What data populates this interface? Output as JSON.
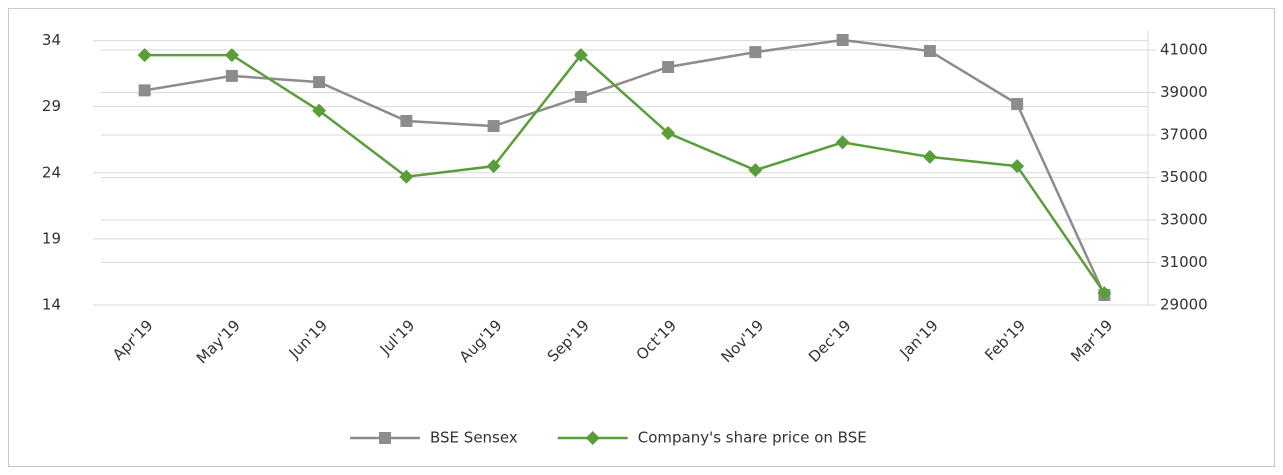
{
  "chart_data": {
    "type": "line",
    "categories": [
      "Apr'19",
      "May'19",
      "Jun'19",
      "Jul'19",
      "Aug'19",
      "Sep'19",
      "Oct'19",
      "Nov'19",
      "Dec'19",
      "Jan'19",
      "Feb'19",
      "Mar'19"
    ],
    "series": [
      {
        "name": "BSE Sensex",
        "color": "#8c8c8c",
        "marker": "square",
        "axis": "y2",
        "values": [
          39100,
          39780,
          39490,
          37660,
          37420,
          38790,
          40200,
          40900,
          41470,
          40950,
          38460,
          29470
        ]
      },
      {
        "name": "Company's share price on BSE",
        "color": "#5a9e3a",
        "marker": "diamond",
        "values": [
          32.9,
          32.9,
          28.7,
          23.7,
          24.5,
          32.9,
          27.0,
          24.2,
          26.3,
          25.2,
          24.5,
          14.9
        ]
      }
    ],
    "ylim": [
      14,
      34.8
    ],
    "yticks": [
      14,
      19,
      24,
      29,
      34
    ],
    "y2lim": [
      29000,
      41940
    ],
    "y2ticks": [
      29000,
      31000,
      33000,
      35000,
      37000,
      39000,
      41000
    ],
    "grid": true,
    "legend": "bottom"
  }
}
